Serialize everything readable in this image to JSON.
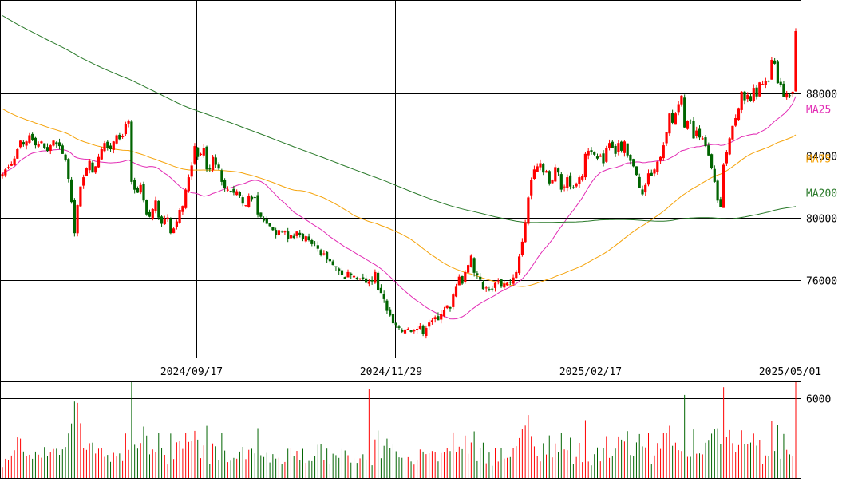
{
  "chart_data": {
    "type": "candlestick",
    "price_axis": {
      "ylim": [
        71000,
        94000
      ],
      "ticks": [
        {
          "value": 88000,
          "label": "88000"
        },
        {
          "value": 84000,
          "label": "84000"
        },
        {
          "value": 80000,
          "label": "80000"
        },
        {
          "value": 76000,
          "label": "76000"
        }
      ]
    },
    "date_labels": [
      "2024/09/17",
      "2024/11/29",
      "2025/02/17",
      "2025/05/01"
    ],
    "moving_averages": [
      {
        "name": "MA25",
        "color": "#e22bb4",
        "label_value": 87000
      },
      {
        "name": "MA75",
        "color": "#f5a30a",
        "label_value": 83800
      },
      {
        "name": "MA200",
        "color": "#2a7a2a",
        "label_value": 81600
      }
    ],
    "volume_axis": {
      "ylim": [
        0,
        7200
      ],
      "ticks": [
        {
          "value": 6000,
          "label": "6000"
        }
      ]
    },
    "up_color": "#ff0000",
    "down_color": "#006400",
    "closes": [
      82800,
      83100,
      83250,
      83450,
      83800,
      84400,
      84950,
      84700,
      84900,
      85300,
      85000,
      84650,
      84750,
      84900,
      84500,
      84300,
      84650,
      84950,
      84700,
      84600,
      84100,
      83700,
      82500,
      81000,
      79000,
      80800,
      82000,
      82600,
      83200,
      83650,
      82900,
      83300,
      83900,
      84400,
      84800,
      84500,
      84400,
      84900,
      85300,
      85050,
      85250,
      86000,
      86200,
      82300,
      81800,
      81600,
      82100,
      81100,
      80200,
      80050,
      80550,
      81100,
      80000,
      79600,
      79900,
      80000,
      79000,
      79300,
      79750,
      80500,
      80750,
      81800,
      82600,
      83350,
      84600,
      83900,
      84100,
      84500,
      83100,
      83100,
      83900,
      83400,
      83150,
      82300,
      81900,
      81800,
      81700,
      81600,
      81700,
      81400,
      80900,
      80800,
      81400,
      81200,
      81300,
      80200,
      80050,
      79800,
      79600,
      79450,
      79200,
      78900,
      79200,
      79100,
      79100,
      78600,
      78900,
      78700,
      79100,
      78900,
      78600,
      78800,
      78550,
      78300,
      78350,
      78000,
      77600,
      77700,
      77300,
      77200,
      76950,
      76800,
      76550,
      76300,
      76050,
      76500,
      76300,
      76250,
      76100,
      76100,
      76050,
      75800,
      75900,
      75900,
      76500,
      75350,
      75150,
      74750,
      74000,
      73700,
      73200,
      73100,
      72900,
      72650,
      72800,
      72850,
      72650,
      72750,
      72850,
      73050,
      72500,
      72900,
      73250,
      73400,
      73600,
      73400,
      73800,
      74050,
      74350,
      74150,
      75050,
      75550,
      76200,
      75750,
      76500,
      76950,
      77550,
      76450,
      76300,
      76000,
      75400,
      75500,
      75350,
      75400,
      75800,
      75950,
      75550,
      75750,
      75800,
      75850,
      76150,
      76500,
      77500,
      78450,
      79700,
      81300,
      82400,
      83100,
      83300,
      83500,
      82900,
      83000,
      82200,
      82400,
      83250,
      82900,
      81800,
      82000,
      82600,
      82000,
      81900,
      82200,
      82600,
      82700,
      84100,
      84300,
      84200,
      84050,
      83800,
      84000,
      83500,
      84500,
      84800,
      84500,
      84100,
      84800,
      84300,
      84900,
      84000,
      83650,
      83300,
      82750,
      81900,
      81500,
      82100,
      82850,
      82700,
      83100,
      83600,
      83900,
      84650,
      85500,
      86700,
      86100,
      86700,
      87300,
      87850,
      85800,
      86200,
      86200,
      85100,
      85600,
      85150,
      85100,
      84600,
      84000,
      83200,
      82300,
      81100,
      80700,
      83400,
      84200,
      85100,
      85900,
      86400,
      87050,
      88100,
      87550,
      87900,
      87500,
      88350,
      87800,
      88700,
      88600,
      88800,
      88750,
      90150,
      89900,
      88650,
      88550,
      87750,
      87950,
      87850,
      88100,
      92000
    ]
  }
}
